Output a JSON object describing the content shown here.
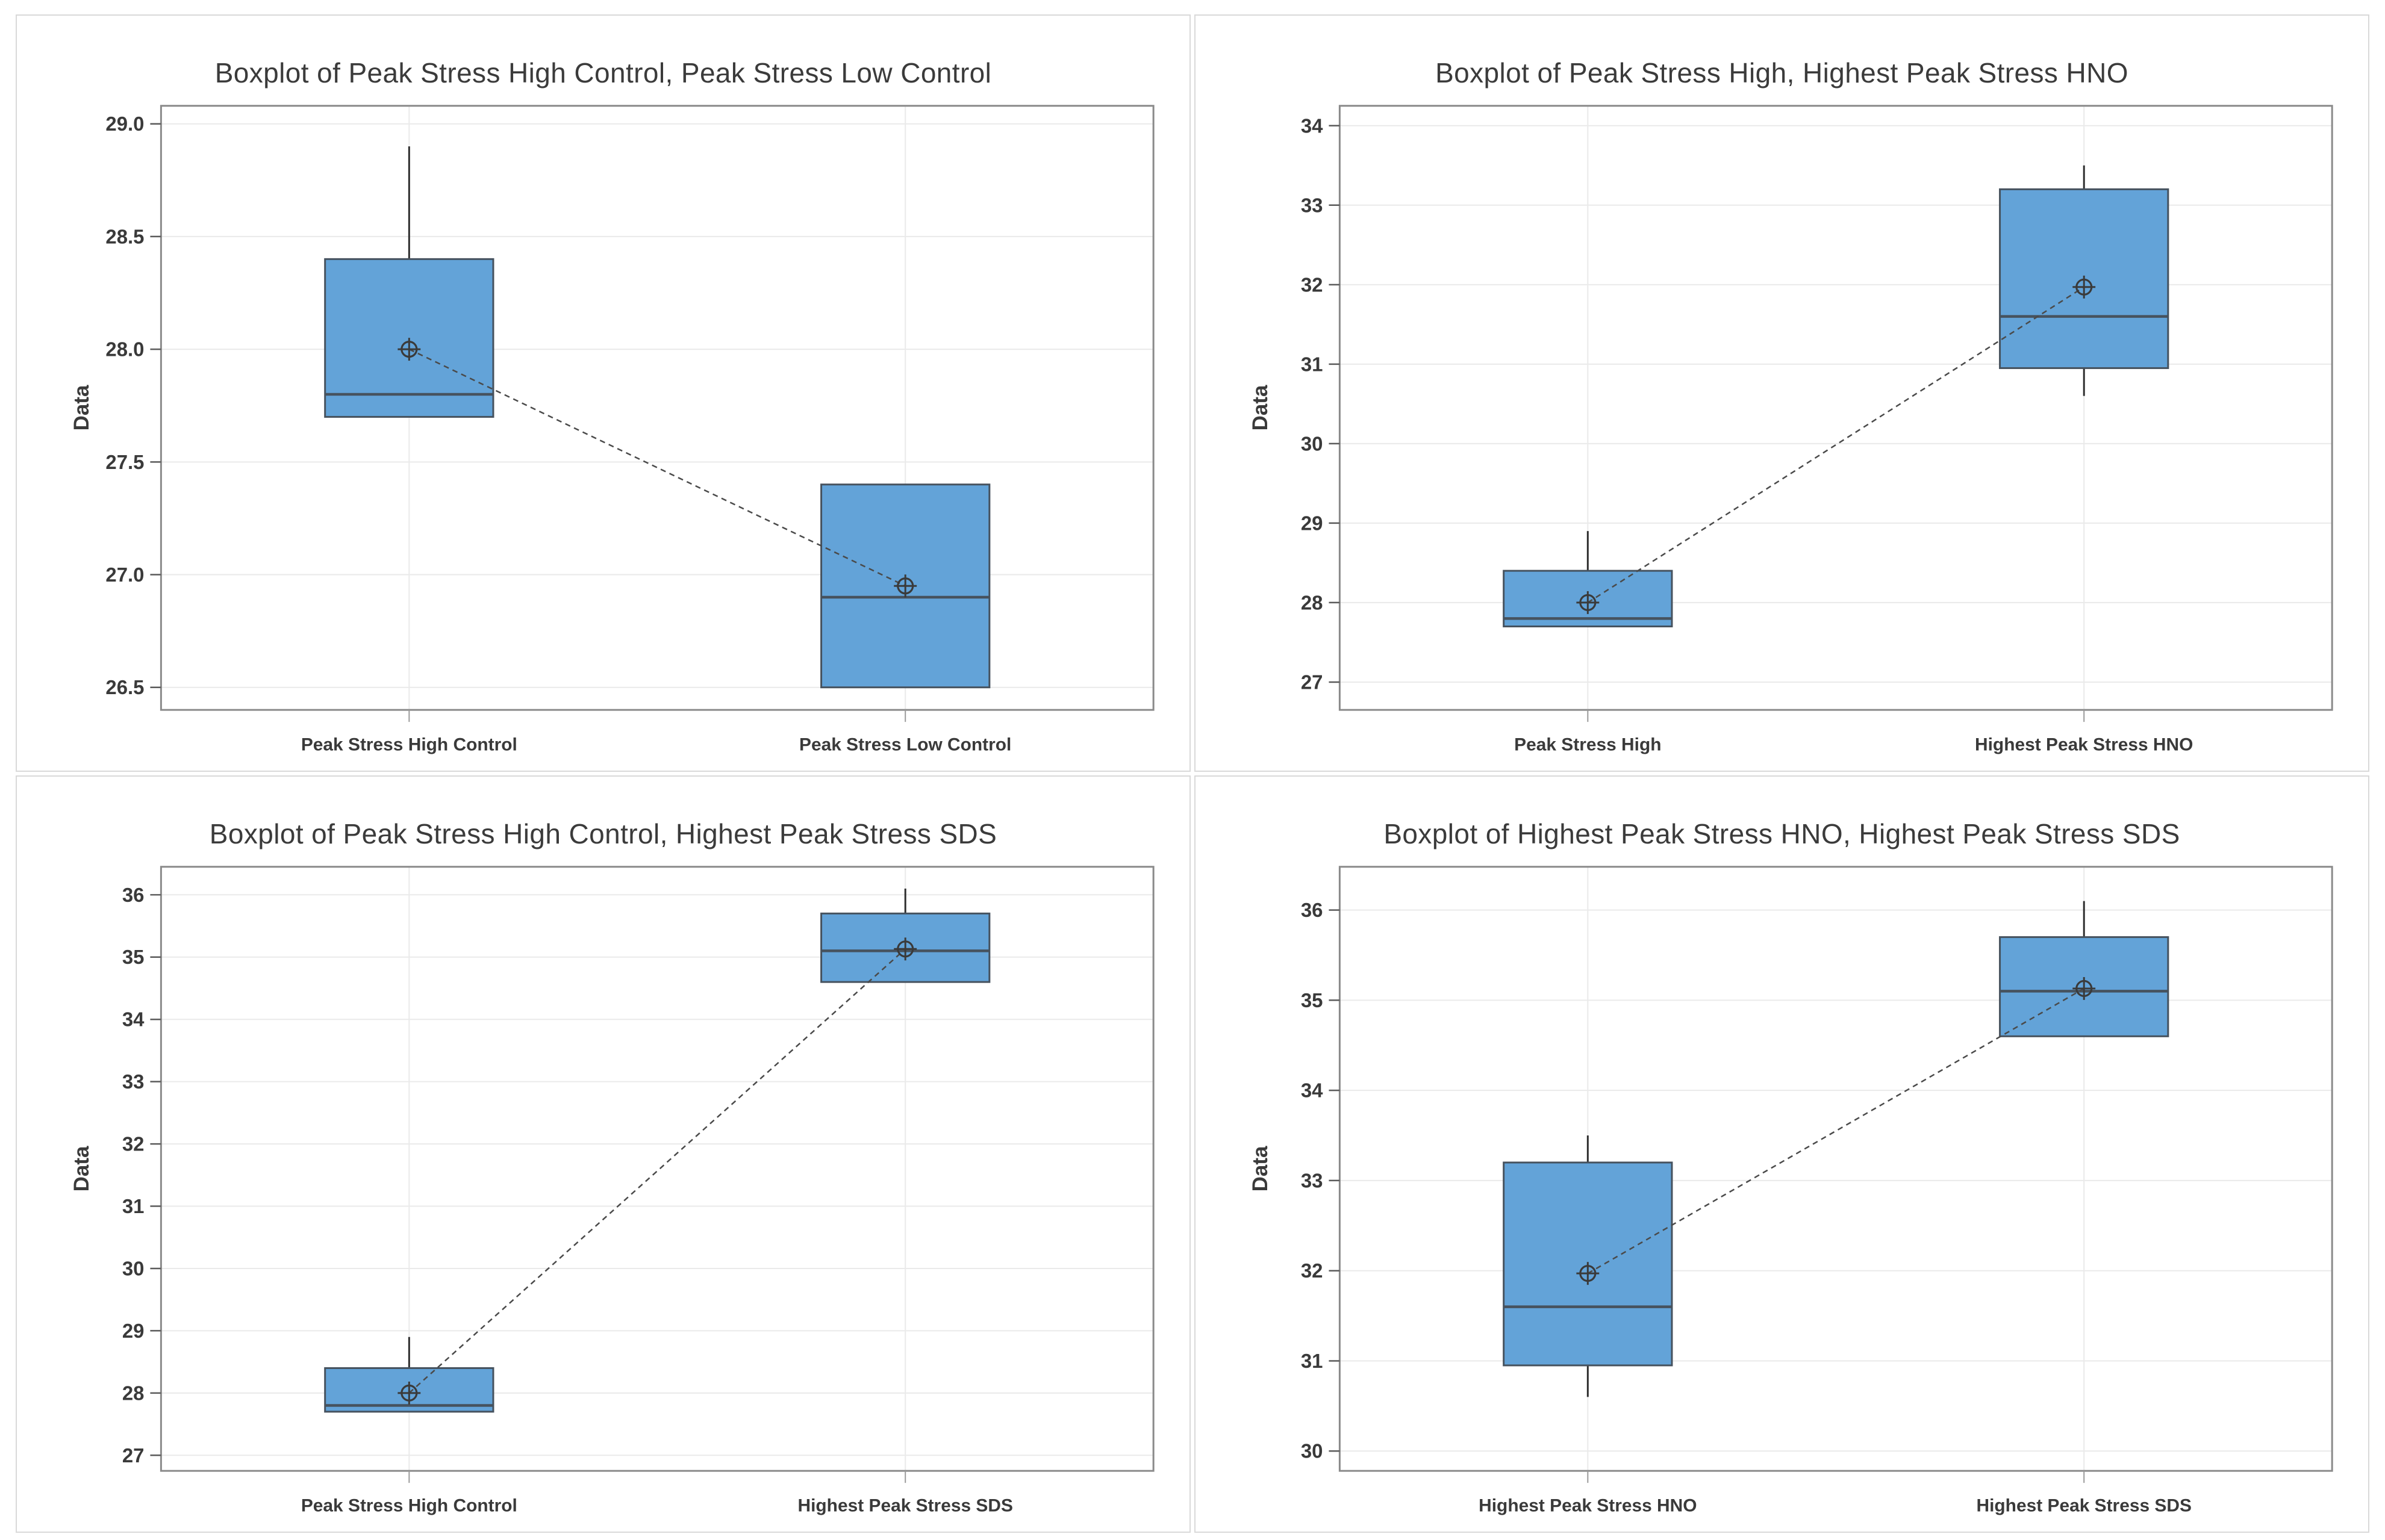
{
  "style": {
    "box_fill": "#63A3D8",
    "box_stroke": "#46525E",
    "median_color": "#46525E",
    "whisker_color": "#2E2E2E",
    "mean_marker_color": "#3A3A3A",
    "connector_color": "#4A4A4A",
    "gridline_color": "#EAEAEA",
    "plot_border_color": "#8A8A8A",
    "tick_color": "#5A5A5A",
    "bottom_tick_color": "#9A9A9A",
    "text_color": "#3A3A3A",
    "panel_border_color": "#D9D9D9",
    "background": "#FFFFFF"
  },
  "chart_data": [
    {
      "type": "boxplot",
      "title": "Boxplot of Peak Stress High Control, Peak Stress Low Control",
      "ylabel": "Data",
      "ylim": [
        26.4,
        29.08
      ],
      "grid": true,
      "legend_position": "none",
      "connector": "means",
      "yticks": [
        {
          "value": 26.5,
          "label": "26.5"
        },
        {
          "value": 27.0,
          "label": "27.0"
        },
        {
          "value": 27.5,
          "label": "27.5"
        },
        {
          "value": 28.0,
          "label": "28.0"
        },
        {
          "value": 28.5,
          "label": "28.5"
        },
        {
          "value": 29.0,
          "label": "29.0"
        }
      ],
      "categories": [
        "Peak Stress High Control",
        "Peak Stress Low Control"
      ],
      "boxes": [
        {
          "category": "Peak Stress High Control",
          "q1": 27.7,
          "median": 27.8,
          "q3": 28.4,
          "whisker_low": null,
          "whisker_high": 28.9,
          "mean": 28.0
        },
        {
          "category": "Peak Stress Low Control",
          "q1": 26.5,
          "median": 26.9,
          "q3": 27.4,
          "whisker_low": null,
          "whisker_high": null,
          "mean": 26.95
        }
      ]
    },
    {
      "type": "boxplot",
      "title": "Boxplot of Peak Stress High, Highest Peak Stress HNO",
      "ylabel": "Data",
      "ylim": [
        26.65,
        34.25
      ],
      "grid": true,
      "legend_position": "none",
      "connector": "means",
      "yticks": [
        {
          "value": 27,
          "label": "27"
        },
        {
          "value": 28,
          "label": "28"
        },
        {
          "value": 29,
          "label": "29"
        },
        {
          "value": 30,
          "label": "30"
        },
        {
          "value": 31,
          "label": "31"
        },
        {
          "value": 32,
          "label": "32"
        },
        {
          "value": 33,
          "label": "33"
        },
        {
          "value": 34,
          "label": "34"
        }
      ],
      "categories": [
        "Peak Stress High",
        "Highest Peak Stress HNO"
      ],
      "boxes": [
        {
          "category": "Peak Stress High",
          "q1": 27.7,
          "median": 27.8,
          "q3": 28.4,
          "whisker_low": null,
          "whisker_high": 28.9,
          "mean": 28.0
        },
        {
          "category": "Highest Peak Stress HNO",
          "q1": 30.95,
          "median": 31.6,
          "q3": 33.2,
          "whisker_low": 30.6,
          "whisker_high": 33.5,
          "mean": 31.97
        }
      ]
    },
    {
      "type": "boxplot",
      "title": "Boxplot of Peak Stress High Control, Highest Peak Stress SDS",
      "ylabel": "Data",
      "ylim": [
        26.75,
        36.45
      ],
      "grid": true,
      "legend_position": "none",
      "connector": "means",
      "yticks": [
        {
          "value": 27,
          "label": "27"
        },
        {
          "value": 28,
          "label": "28"
        },
        {
          "value": 29,
          "label": "29"
        },
        {
          "value": 30,
          "label": "30"
        },
        {
          "value": 31,
          "label": "31"
        },
        {
          "value": 32,
          "label": "32"
        },
        {
          "value": 33,
          "label": "33"
        },
        {
          "value": 34,
          "label": "34"
        },
        {
          "value": 35,
          "label": "35"
        },
        {
          "value": 36,
          "label": "36"
        }
      ],
      "categories": [
        "Peak Stress High Control",
        "Highest Peak Stress SDS"
      ],
      "boxes": [
        {
          "category": "Peak Stress High Control",
          "q1": 27.7,
          "median": 27.8,
          "q3": 28.4,
          "whisker_low": null,
          "whisker_high": 28.9,
          "mean": 28.0
        },
        {
          "category": "Highest Peak Stress SDS",
          "q1": 34.6,
          "median": 35.1,
          "q3": 35.7,
          "whisker_low": null,
          "whisker_high": 36.1,
          "mean": 35.13
        }
      ]
    },
    {
      "type": "boxplot",
      "title": "Boxplot of Highest Peak Stress HNO, Highest Peak Stress SDS",
      "ylabel": "Data",
      "ylim": [
        29.78,
        36.48
      ],
      "grid": true,
      "legend_position": "none",
      "connector": "means",
      "yticks": [
        {
          "value": 30,
          "label": "30"
        },
        {
          "value": 31,
          "label": "31"
        },
        {
          "value": 32,
          "label": "32"
        },
        {
          "value": 33,
          "label": "33"
        },
        {
          "value": 34,
          "label": "34"
        },
        {
          "value": 35,
          "label": "35"
        },
        {
          "value": 36,
          "label": "36"
        }
      ],
      "categories": [
        "Highest Peak Stress HNO",
        "Highest Peak Stress SDS"
      ],
      "boxes": [
        {
          "category": "Highest Peak Stress HNO",
          "q1": 30.95,
          "median": 31.6,
          "q3": 33.2,
          "whisker_low": 30.6,
          "whisker_high": 33.5,
          "mean": 31.97
        },
        {
          "category": "Highest Peak Stress SDS",
          "q1": 34.6,
          "median": 35.1,
          "q3": 35.7,
          "whisker_low": null,
          "whisker_high": 36.1,
          "mean": 35.13
        }
      ]
    }
  ]
}
